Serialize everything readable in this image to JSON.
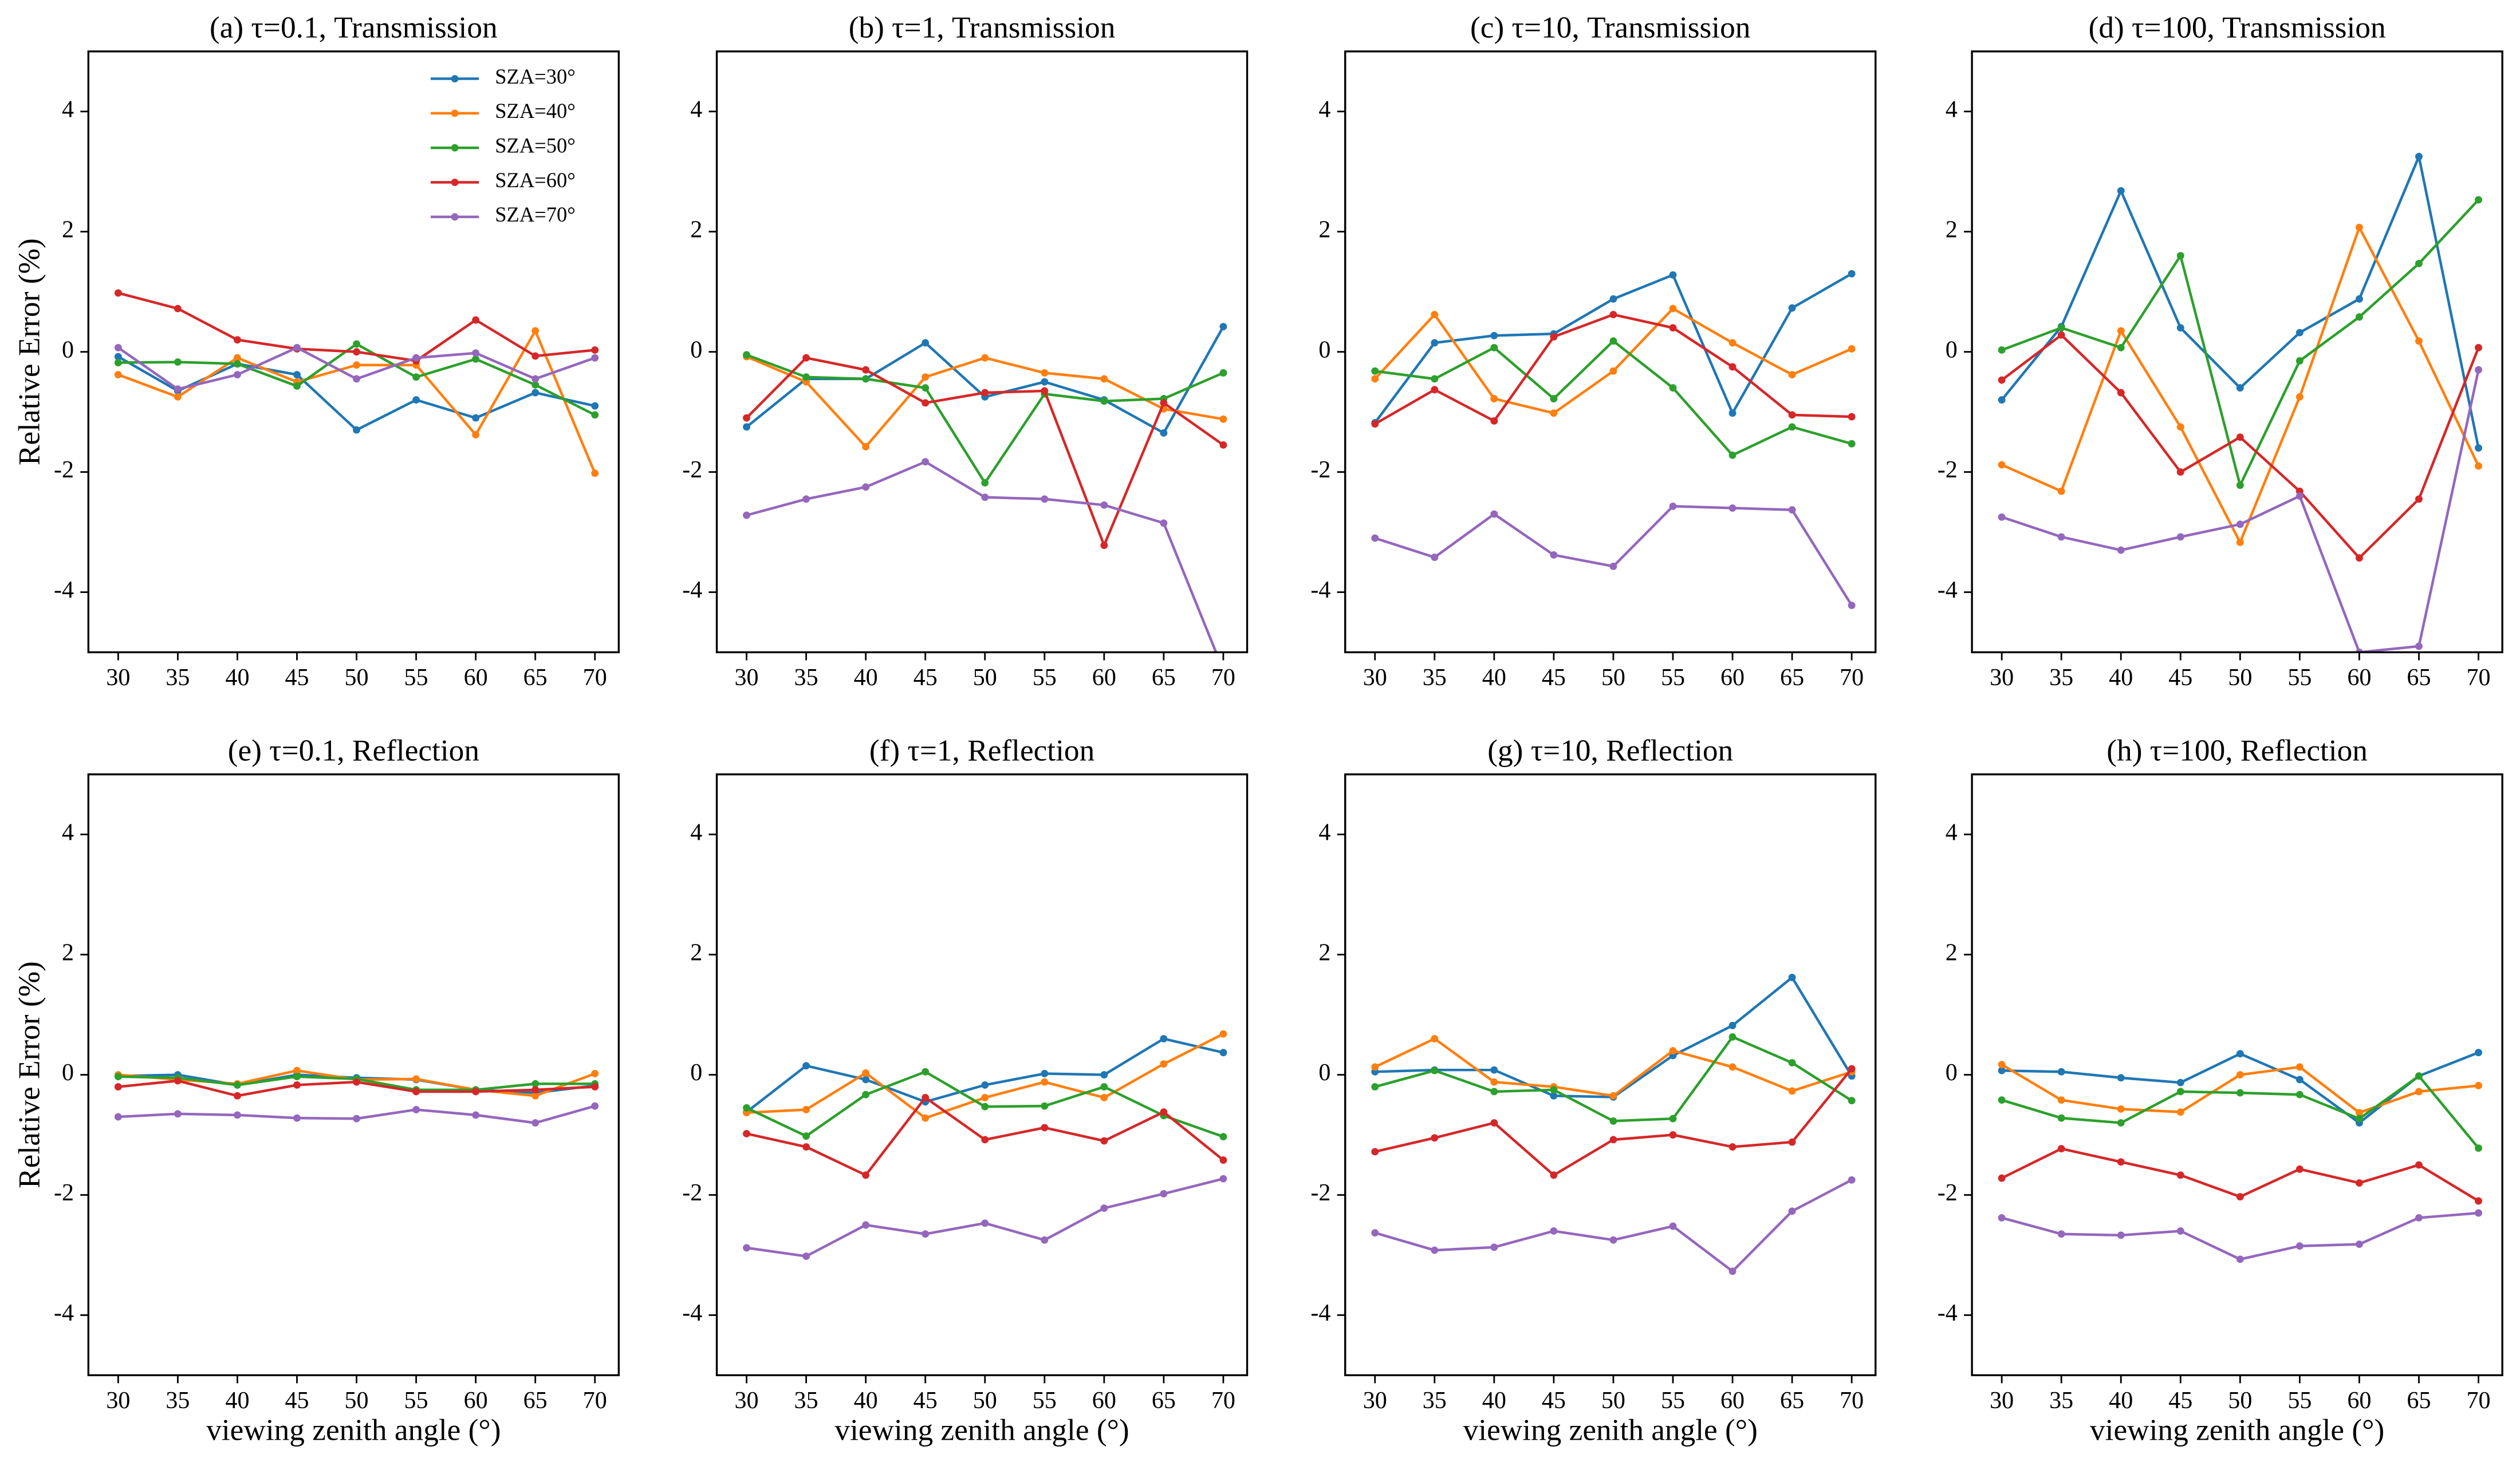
{
  "chart_data": [
    {
      "type": "line",
      "title": "(a) τ=0.1, Transmission",
      "ylabel": "Relative Error (%)",
      "legend": "upper right",
      "x": [
        30,
        35,
        40,
        45,
        50,
        55,
        60,
        65,
        70
      ],
      "xlim": [
        27.5,
        72
      ],
      "xticks": [
        30,
        35,
        40,
        45,
        50,
        55,
        60,
        65,
        70
      ],
      "ylim": [
        -5,
        5
      ],
      "yticks": [
        -4,
        -2,
        0,
        2,
        4
      ],
      "series": [
        {
          "name": "SZA=30°",
          "color": "#1f77b4",
          "values": [
            -0.08,
            -0.65,
            -0.2,
            -0.38,
            -1.3,
            -0.8,
            -1.1,
            -0.68,
            -0.9
          ]
        },
        {
          "name": "SZA=40°",
          "color": "#ff7f0e",
          "values": [
            -0.38,
            -0.75,
            -0.1,
            -0.5,
            -0.22,
            -0.22,
            -1.38,
            0.35,
            -2.02
          ]
        },
        {
          "name": "SZA=50°",
          "color": "#2ca02c",
          "values": [
            -0.18,
            -0.17,
            -0.2,
            -0.57,
            0.13,
            -0.42,
            -0.12,
            -0.55,
            -1.05
          ]
        },
        {
          "name": "SZA=60°",
          "color": "#d62728",
          "values": [
            0.98,
            0.72,
            0.2,
            0.05,
            0.0,
            -0.15,
            0.53,
            -0.07,
            0.03
          ]
        },
        {
          "name": "SZA=70°",
          "color": "#9467bd",
          "values": [
            0.07,
            -0.62,
            -0.38,
            0.07,
            -0.45,
            -0.1,
            -0.02,
            -0.45,
            -0.1
          ]
        }
      ]
    },
    {
      "type": "line",
      "title": "(b) τ=1, Transmission",
      "x": [
        30,
        35,
        40,
        45,
        50,
        55,
        60,
        65,
        70
      ],
      "xlim": [
        27.5,
        72
      ],
      "xticks": [
        30,
        35,
        40,
        45,
        50,
        55,
        60,
        65,
        70
      ],
      "ylim": [
        -5,
        5
      ],
      "yticks": [
        -4,
        -2,
        0,
        2,
        4
      ],
      "series": [
        {
          "color": "#1f77b4",
          "values": [
            -1.25,
            -0.45,
            -0.45,
            0.15,
            -0.75,
            -0.5,
            -0.8,
            -1.35,
            0.42
          ]
        },
        {
          "color": "#ff7f0e",
          "values": [
            -0.08,
            -0.5,
            -1.58,
            -0.42,
            -0.1,
            -0.35,
            -0.45,
            -0.95,
            -1.12
          ]
        },
        {
          "color": "#2ca02c",
          "values": [
            -0.05,
            -0.42,
            -0.45,
            -0.6,
            -2.18,
            -0.7,
            -0.82,
            -0.78,
            -0.35
          ]
        },
        {
          "color": "#d62728",
          "values": [
            -1.1,
            -0.1,
            -0.3,
            -0.85,
            -0.68,
            -0.65,
            -3.22,
            -0.85,
            -1.55
          ]
        },
        {
          "color": "#9467bd",
          "values": [
            -2.72,
            -2.45,
            -2.25,
            -1.83,
            -2.42,
            -2.45,
            -2.55,
            -2.85,
            -5.3
          ]
        }
      ]
    },
    {
      "type": "line",
      "title": "(c) τ=10, Transmission",
      "x": [
        30,
        35,
        40,
        45,
        50,
        55,
        60,
        65,
        70
      ],
      "xlim": [
        27.5,
        72
      ],
      "xticks": [
        30,
        35,
        40,
        45,
        50,
        55,
        60,
        65,
        70
      ],
      "ylim": [
        -5,
        5
      ],
      "yticks": [
        -4,
        -2,
        0,
        2,
        4
      ],
      "series": [
        {
          "color": "#1f77b4",
          "values": [
            -1.18,
            0.15,
            0.27,
            0.3,
            0.88,
            1.28,
            -1.02,
            0.73,
            1.3
          ]
        },
        {
          "color": "#ff7f0e",
          "values": [
            -0.45,
            0.62,
            -0.78,
            -1.02,
            -0.32,
            0.72,
            0.15,
            -0.38,
            0.05
          ]
        },
        {
          "color": "#2ca02c",
          "values": [
            -0.32,
            -0.45,
            0.07,
            -0.78,
            0.18,
            -0.6,
            -1.72,
            -1.25,
            -1.53
          ]
        },
        {
          "color": "#d62728",
          "values": [
            -1.2,
            -0.63,
            -1.15,
            0.25,
            0.62,
            0.4,
            -0.25,
            -1.05,
            -1.08
          ]
        },
        {
          "color": "#9467bd",
          "values": [
            -3.1,
            -3.42,
            -2.7,
            -3.38,
            -3.57,
            -2.57,
            -2.6,
            -2.63,
            -4.22
          ]
        }
      ]
    },
    {
      "type": "line",
      "title": "(d) τ=100, Transmission",
      "x": [
        30,
        35,
        40,
        45,
        50,
        55,
        60,
        65,
        70
      ],
      "xlim": [
        27.5,
        72
      ],
      "xticks": [
        30,
        35,
        40,
        45,
        50,
        55,
        60,
        65,
        70
      ],
      "ylim": [
        -5,
        5
      ],
      "yticks": [
        -4,
        -2,
        0,
        2,
        4
      ],
      "series": [
        {
          "color": "#1f77b4",
          "values": [
            -0.8,
            0.42,
            2.68,
            0.4,
            -0.6,
            0.32,
            0.88,
            3.25,
            -1.6
          ]
        },
        {
          "color": "#ff7f0e",
          "values": [
            -1.88,
            -2.32,
            0.35,
            -1.25,
            -3.17,
            -0.75,
            2.07,
            0.18,
            -1.9
          ]
        },
        {
          "color": "#2ca02c",
          "values": [
            0.03,
            0.4,
            0.07,
            1.6,
            -2.22,
            -0.15,
            0.58,
            1.47,
            2.53
          ]
        },
        {
          "color": "#d62728",
          "values": [
            -0.47,
            0.28,
            -0.68,
            -2.0,
            -1.42,
            -2.32,
            -3.43,
            -2.45,
            0.07
          ]
        },
        {
          "color": "#9467bd",
          "values": [
            -2.75,
            -3.08,
            -3.3,
            -3.08,
            -2.87,
            -2.4,
            -5.0,
            -4.9,
            -0.3
          ]
        }
      ]
    },
    {
      "type": "line",
      "title": "(e) τ=0.1, Reflection",
      "ylabel": "Relative Error (%)",
      "xlabel": "viewing zenith angle (°)",
      "x": [
        30,
        35,
        40,
        45,
        50,
        55,
        60,
        65,
        70
      ],
      "xlim": [
        27.5,
        72
      ],
      "xticks": [
        30,
        35,
        40,
        45,
        50,
        55,
        60,
        65,
        70
      ],
      "ylim": [
        -5,
        5
      ],
      "yticks": [
        -4,
        -2,
        0,
        2,
        4
      ],
      "series": [
        {
          "color": "#1f77b4",
          "values": [
            -0.02,
            0.0,
            -0.17,
            0.0,
            -0.05,
            -0.08,
            -0.25,
            -0.3,
            -0.18
          ]
        },
        {
          "color": "#ff7f0e",
          "values": [
            0.0,
            -0.08,
            -0.15,
            0.07,
            -0.08,
            -0.07,
            -0.25,
            -0.35,
            0.02
          ]
        },
        {
          "color": "#2ca02c",
          "values": [
            -0.03,
            -0.05,
            -0.17,
            -0.03,
            -0.07,
            -0.25,
            -0.25,
            -0.15,
            -0.15
          ]
        },
        {
          "color": "#d62728",
          "values": [
            -0.2,
            -0.1,
            -0.35,
            -0.17,
            -0.12,
            -0.28,
            -0.28,
            -0.25,
            -0.2
          ]
        },
        {
          "color": "#9467bd",
          "values": [
            -0.7,
            -0.65,
            -0.67,
            -0.72,
            -0.73,
            -0.58,
            -0.67,
            -0.8,
            -0.52
          ]
        }
      ]
    },
    {
      "type": "line",
      "title": "(f) τ=1, Reflection",
      "xlabel": "viewing zenith angle (°)",
      "x": [
        30,
        35,
        40,
        45,
        50,
        55,
        60,
        65,
        70
      ],
      "xlim": [
        27.5,
        72
      ],
      "xticks": [
        30,
        35,
        40,
        45,
        50,
        55,
        60,
        65,
        70
      ],
      "ylim": [
        -5,
        5
      ],
      "yticks": [
        -4,
        -2,
        0,
        2,
        4
      ],
      "series": [
        {
          "color": "#1f77b4",
          "values": [
            -0.62,
            0.15,
            -0.08,
            -0.45,
            -0.17,
            0.02,
            0.0,
            0.6,
            0.37
          ]
        },
        {
          "color": "#ff7f0e",
          "values": [
            -0.63,
            -0.58,
            0.03,
            -0.72,
            -0.38,
            -0.12,
            -0.38,
            0.18,
            0.68
          ]
        },
        {
          "color": "#2ca02c",
          "values": [
            -0.55,
            -1.02,
            -0.33,
            0.05,
            -0.53,
            -0.52,
            -0.2,
            -0.68,
            -1.03
          ]
        },
        {
          "color": "#d62728",
          "values": [
            -0.98,
            -1.2,
            -1.67,
            -0.38,
            -1.08,
            -0.88,
            -1.1,
            -0.62,
            -1.42
          ]
        },
        {
          "color": "#9467bd",
          "values": [
            -2.88,
            -3.02,
            -2.5,
            -2.65,
            -2.47,
            -2.75,
            -2.22,
            -1.98,
            -1.73
          ]
        }
      ]
    },
    {
      "type": "line",
      "title": "(g) τ=10, Reflection",
      "xlabel": "viewing zenith angle (°)",
      "x": [
        30,
        35,
        40,
        45,
        50,
        55,
        60,
        65,
        70
      ],
      "xlim": [
        27.5,
        72
      ],
      "xticks": [
        30,
        35,
        40,
        45,
        50,
        55,
        60,
        65,
        70
      ],
      "ylim": [
        -5,
        5
      ],
      "yticks": [
        -4,
        -2,
        0,
        2,
        4
      ],
      "series": [
        {
          "color": "#1f77b4",
          "values": [
            0.05,
            0.08,
            0.08,
            -0.35,
            -0.37,
            0.32,
            0.82,
            1.62,
            -0.02
          ]
        },
        {
          "color": "#ff7f0e",
          "values": [
            0.13,
            0.6,
            -0.12,
            -0.2,
            -0.35,
            0.4,
            0.13,
            -0.27,
            0.05
          ]
        },
        {
          "color": "#2ca02c",
          "values": [
            -0.2,
            0.07,
            -0.28,
            -0.25,
            -0.77,
            -0.73,
            0.63,
            0.2,
            -0.43
          ]
        },
        {
          "color": "#d62728",
          "values": [
            -1.28,
            -1.05,
            -0.8,
            -1.67,
            -1.08,
            -1.0,
            -1.2,
            -1.12,
            0.1
          ]
        },
        {
          "color": "#9467bd",
          "values": [
            -2.63,
            -2.92,
            -2.87,
            -2.6,
            -2.75,
            -2.52,
            -3.27,
            -2.27,
            -1.75
          ]
        }
      ]
    },
    {
      "type": "line",
      "title": "(h) τ=100, Reflection",
      "xlabel": "viewing zenith angle (°)",
      "x": [
        30,
        35,
        40,
        45,
        50,
        55,
        60,
        65,
        70
      ],
      "xlim": [
        27.5,
        72
      ],
      "xticks": [
        30,
        35,
        40,
        45,
        50,
        55,
        60,
        65,
        70
      ],
      "ylim": [
        -5,
        5
      ],
      "yticks": [
        -4,
        -2,
        0,
        2,
        4
      ],
      "series": [
        {
          "color": "#1f77b4",
          "values": [
            0.07,
            0.05,
            -0.05,
            -0.13,
            0.35,
            -0.08,
            -0.8,
            -0.02,
            0.37
          ]
        },
        {
          "color": "#ff7f0e",
          "values": [
            0.17,
            -0.42,
            -0.57,
            -0.62,
            0.0,
            0.13,
            -0.63,
            -0.28,
            -0.18
          ]
        },
        {
          "color": "#2ca02c",
          "values": [
            -0.42,
            -0.72,
            -0.8,
            -0.28,
            -0.3,
            -0.33,
            -0.73,
            -0.02,
            -1.22
          ]
        },
        {
          "color": "#d62728",
          "values": [
            -1.72,
            -1.23,
            -1.45,
            -1.67,
            -2.03,
            -1.57,
            -1.8,
            -1.5,
            -2.1
          ]
        },
        {
          "color": "#9467bd",
          "values": [
            -2.38,
            -2.65,
            -2.67,
            -2.6,
            -3.07,
            -2.85,
            -2.82,
            -2.38,
            -2.3
          ]
        }
      ]
    }
  ]
}
